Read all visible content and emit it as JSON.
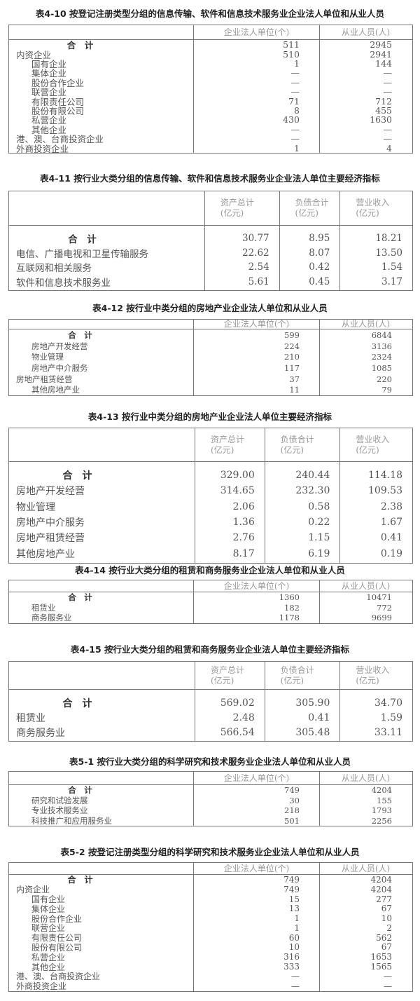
{
  "tables": [
    {
      "title": "表4-10 按登记注册类型分组的信息传输、软件和信息技术服务业企业法人单位和从业人员",
      "headers": [
        "企业法人单位(个)",
        "从业人员(人)"
      ],
      "rows": [
        {
          "label": "合　计",
          "level": -1,
          "values": [
            "511",
            "2945"
          ]
        },
        {
          "label": "内资企业",
          "level": 0,
          "values": [
            "510",
            "2941"
          ]
        },
        {
          "label": "国有企业",
          "level": 1,
          "values": [
            "1",
            "144"
          ]
        },
        {
          "label": "集体企业",
          "level": 1,
          "values": [
            "—",
            "—"
          ]
        },
        {
          "label": "股份合作企业",
          "level": 1,
          "values": [
            "—",
            "—"
          ]
        },
        {
          "label": "联营企业",
          "level": 1,
          "values": [
            "—",
            "—"
          ]
        },
        {
          "label": "有限责任公司",
          "level": 1,
          "values": [
            "71",
            "712"
          ]
        },
        {
          "label": "股份有限公司",
          "level": 1,
          "values": [
            "8",
            "455"
          ]
        },
        {
          "label": "私营企业",
          "level": 1,
          "values": [
            "430",
            "1630"
          ]
        },
        {
          "label": "其他企业",
          "level": 1,
          "values": [
            "—",
            "—"
          ]
        },
        {
          "label": "港、澳、台商投资企业",
          "level": 0,
          "values": [
            "—",
            "—"
          ]
        },
        {
          "label": "外商投资企业",
          "level": 0,
          "values": [
            "1",
            "4"
          ]
        }
      ]
    },
    {
      "title": "表4-11 按行业大类分组的信息传输、软件和信息技术服务业企业法人单位主要经济指标",
      "headers": [
        [
          "资产总计",
          "(亿元)"
        ],
        [
          "负债合计",
          "(亿元)"
        ],
        [
          "营业收入",
          "(亿元)"
        ]
      ],
      "rows": [
        {
          "label": "合　计",
          "level": -1,
          "values": [
            "30.77",
            "8.95",
            "18.21"
          ]
        },
        {
          "label": "电信、广播电视和卫星传输服务",
          "level": 0,
          "values": [
            "22.62",
            "8.07",
            "13.50"
          ]
        },
        {
          "label": "互联网和相关服务",
          "level": 0,
          "values": [
            "2.54",
            "0.42",
            "1.54"
          ]
        },
        {
          "label": "软件和信息技术服务业",
          "level": 0,
          "values": [
            "5.61",
            "0.45",
            "3.17"
          ]
        }
      ]
    },
    {
      "title": "表4-12 按行业中类分组的房地产业企业法人单位和从业人员",
      "headers": [
        "企业法人单位(个)",
        "从业人员(人)"
      ],
      "rows": [
        {
          "label": "合　计",
          "level": -1,
          "values": [
            "599",
            "6844"
          ]
        },
        {
          "label": "房地产开发经营",
          "level": 1,
          "values": [
            "224",
            "3136"
          ]
        },
        {
          "label": "物业管理",
          "level": 1,
          "values": [
            "210",
            "2324"
          ]
        },
        {
          "label": "房地产中介服务",
          "level": 1,
          "values": [
            "117",
            "1085"
          ]
        },
        {
          "label": "房地产租赁经营",
          "level": 0,
          "values": [
            "37",
            "220"
          ]
        },
        {
          "label": "其他房地产业",
          "level": 1,
          "values": [
            "11",
            "79"
          ]
        }
      ]
    },
    {
      "title": "表4-13 按行业中类分组的房地产业企业法人单位主要经济指标",
      "headers": [
        [
          "资产总计",
          "(亿元)"
        ],
        [
          "负债合计",
          "(亿元)"
        ],
        [
          "营业收入",
          "(亿元)"
        ]
      ],
      "rows": [
        {
          "label": "合　计",
          "level": -1,
          "values": [
            "329.00",
            "240.44",
            "114.18"
          ]
        },
        {
          "label": "房地产开发经营",
          "level": 0,
          "values": [
            "314.65",
            "232.30",
            "109.53"
          ]
        },
        {
          "label": "物业管理",
          "level": 0,
          "values": [
            "2.06",
            "0.58",
            "2.38"
          ]
        },
        {
          "label": "房地产中介服务",
          "level": 0,
          "values": [
            "1.36",
            "0.22",
            "1.67"
          ]
        },
        {
          "label": "房地产租赁经营",
          "level": 0,
          "values": [
            "2.76",
            "1.15",
            "0.41"
          ]
        },
        {
          "label": "其他房地产业",
          "level": 0,
          "values": [
            "8.17",
            "6.19",
            "0.19"
          ]
        }
      ]
    },
    {
      "title": "表4-14 按行业大类分组的租赁和商务服务业企业法人单位和从业人员",
      "headers": [
        "企业法人单位(个)",
        "从业人员(人)"
      ],
      "rows": [
        {
          "label": "合　计",
          "level": -1,
          "values": [
            "1360",
            "10471"
          ]
        },
        {
          "label": "租赁业",
          "level": 1,
          "values": [
            "182",
            "772"
          ]
        },
        {
          "label": "商务服务业",
          "level": 1,
          "values": [
            "1178",
            "9699"
          ]
        }
      ]
    },
    {
      "title": "表4-15 按行业大类分组的租赁和商务服务业企业法人单位主要经济指标",
      "headers": [
        [
          "资产总计",
          "(亿元)"
        ],
        [
          "负债合计",
          "(亿元)"
        ],
        [
          "营业收入",
          "(亿元)"
        ]
      ],
      "rows": [
        {
          "label": "合　计",
          "level": -1,
          "values": [
            "569.02",
            "305.90",
            "34.70"
          ]
        },
        {
          "label": "租赁业",
          "level": 0,
          "values": [
            "2.48",
            "0.41",
            "1.59"
          ]
        },
        {
          "label": "商务服务业",
          "level": 0,
          "values": [
            "566.54",
            "305.48",
            "33.11"
          ]
        }
      ]
    },
    {
      "title": "表5-1 按行业大类分组的科学研究和技术服务业企业法人单位和从业人员",
      "headers": [
        "企业法人单位(个)",
        "从业人员(人)"
      ],
      "rows": [
        {
          "label": "合　计",
          "level": -1,
          "values": [
            "749",
            "4204"
          ]
        },
        {
          "label": "研究和试验发展",
          "level": 1,
          "values": [
            "30",
            "155"
          ]
        },
        {
          "label": "专业技术服务业",
          "level": 1,
          "values": [
            "218",
            "1793"
          ]
        },
        {
          "label": "科技推广和应用服务业",
          "level": 1,
          "values": [
            "501",
            "2256"
          ]
        }
      ]
    },
    {
      "title": "表5-2 按登记注册类型分组的科学研究和技术服务业企业法人单位和从业人员",
      "headers": [
        "企业法人单位(个)",
        "从业人员(人)"
      ],
      "rows": [
        {
          "label": "合　计",
          "level": -1,
          "values": [
            "749",
            "4204"
          ]
        },
        {
          "label": "内资企业",
          "level": 0,
          "values": [
            "749",
            "4204"
          ]
        },
        {
          "label": "国有企业",
          "level": 1,
          "values": [
            "15",
            "277"
          ]
        },
        {
          "label": "集体企业",
          "level": 1,
          "values": [
            "13",
            "67"
          ]
        },
        {
          "label": "股份合作企业",
          "level": 1,
          "values": [
            "1",
            "10"
          ]
        },
        {
          "label": "联营企业",
          "level": 1,
          "values": [
            "1",
            "2"
          ]
        },
        {
          "label": "有限责任公司",
          "level": 1,
          "values": [
            "60",
            "562"
          ]
        },
        {
          "label": "股份有限公司",
          "level": 1,
          "values": [
            "10",
            "67"
          ]
        },
        {
          "label": "私营企业",
          "level": 1,
          "values": [
            "316",
            "1653"
          ]
        },
        {
          "label": "其他企业",
          "level": 1,
          "values": [
            "333",
            "1565"
          ]
        },
        {
          "label": "港、澳、台商投资企业",
          "level": 0,
          "values": [
            "—",
            "—"
          ]
        },
        {
          "label": "外商投资企业",
          "level": 0,
          "values": [
            "—",
            "—"
          ]
        }
      ]
    }
  ]
}
